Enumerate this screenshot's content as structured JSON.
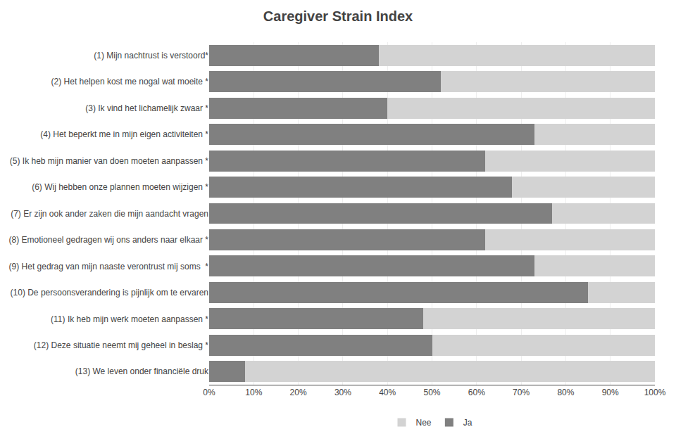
{
  "chart_data": {
    "type": "bar",
    "orientation": "horizontal",
    "stacked": true,
    "title": "Caregiver Strain Index",
    "categories": [
      "(1) Mijn nachtrust is verstoord*",
      "(2) Het helpen kost me nogal wat moeite *",
      "(3) Ik vind het lichamelijk zwaar *",
      "(4) Het beperkt me in mijn eigen activiteiten *",
      "(5) Ik heb mijn manier van doen moeten aanpassen *",
      "(6) Wij hebben onze plannen moeten wijzigen *",
      "(7) Er zijn ook ander zaken die mijn aandacht vragen",
      "(8) Emotioneel gedragen wij ons anders naar elkaar *",
      "(9) Het gedrag van mijn naaste verontrust mij soms  *",
      "(10) De persoonsverandering is pijnlijk om te ervaren",
      "(11) Ik heb mijn werk moeten aanpassen *",
      "(12) Deze situatie neemt mij geheel in beslag *",
      "(13) We leven onder financiële druk"
    ],
    "series": [
      {
        "name": "Ja",
        "color": "#808080",
        "values": [
          38,
          52,
          40,
          73,
          62,
          68,
          77,
          62,
          73,
          85,
          48,
          50,
          8
        ]
      },
      {
        "name": "Nee",
        "color": "#d3d3d3",
        "values": [
          62,
          48,
          60,
          27,
          38,
          32,
          23,
          38,
          27,
          15,
          52,
          50,
          92
        ]
      }
    ],
    "xlim": [
      0,
      100
    ],
    "xticks": [
      {
        "value": 0,
        "label": "0%"
      },
      {
        "value": 10,
        "label": "10%"
      },
      {
        "value": 20,
        "label": "20%"
      },
      {
        "value": 30,
        "label": "30%"
      },
      {
        "value": 40,
        "label": "40%"
      },
      {
        "value": 50,
        "label": "50%"
      },
      {
        "value": 60,
        "label": "60%"
      },
      {
        "value": 70,
        "label": "70%"
      },
      {
        "value": 80,
        "label": "80%"
      },
      {
        "value": 90,
        "label": "90%"
      },
      {
        "value": 100,
        "label": "100%"
      }
    ],
    "grid": true,
    "legend": "bottom"
  }
}
